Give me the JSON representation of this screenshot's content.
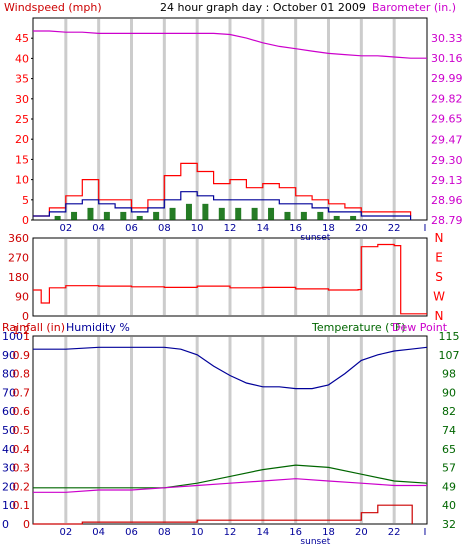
{
  "chart_data": {
    "title": "24 hour graph day : October 01 2009",
    "x_tick_labels": [
      "02",
      "04",
      "06",
      "08",
      "10",
      "12",
      "14",
      "16",
      "18",
      "20",
      "22",
      "I"
    ],
    "marker_label": "sunset",
    "colors": {
      "red": "#ff0000",
      "blue": "#000099",
      "green": "#006600",
      "magenta": "#cc00cc",
      "darkred": "#cc0000",
      "grid": "#cccccc"
    },
    "panels": [
      {
        "id": "wind-baro",
        "type": "line",
        "left_axis": {
          "label": "Windspeed (mph)",
          "ticks": [
            "0",
            "5",
            "10",
            "15",
            "20",
            "25",
            "30",
            "35",
            "40",
            "45"
          ],
          "range": [
            0,
            50
          ]
        },
        "right_axis": {
          "label": "Barometer (in.)",
          "ticks": [
            "28.79",
            "28.96",
            "29.13",
            "29.30",
            "29.47",
            "29.65",
            "29.82",
            "29.99",
            "30.16",
            "30.33"
          ],
          "range": [
            28.79,
            30.5
          ]
        },
        "series": [
          {
            "axis": "right",
            "color_key": "magenta",
            "points": [
              [
                0,
                30.39
              ],
              [
                1,
                30.39
              ],
              [
                2,
                30.38
              ],
              [
                3,
                30.38
              ],
              [
                4,
                30.37
              ],
              [
                5,
                30.37
              ],
              [
                6,
                30.37
              ],
              [
                7,
                30.37
              ],
              [
                8,
                30.37
              ],
              [
                9,
                30.37
              ],
              [
                10,
                30.37
              ],
              [
                11,
                30.37
              ],
              [
                12,
                30.36
              ],
              [
                13,
                30.33
              ],
              [
                14,
                30.29
              ],
              [
                15,
                30.26
              ],
              [
                16,
                30.24
              ],
              [
                17,
                30.22
              ],
              [
                18,
                30.2
              ],
              [
                19,
                30.19
              ],
              [
                20,
                30.18
              ],
              [
                21,
                30.18
              ],
              [
                22,
                30.17
              ],
              [
                23,
                30.16
              ],
              [
                24,
                30.16
              ]
            ]
          },
          {
            "axis": "left",
            "color_key": "red",
            "points": [
              [
                0,
                1
              ],
              [
                1,
                3
              ],
              [
                2,
                6
              ],
              [
                3,
                10
              ],
              [
                4,
                5
              ],
              [
                5,
                5
              ],
              [
                6,
                3
              ],
              [
                7,
                5
              ],
              [
                8,
                11
              ],
              [
                9,
                14
              ],
              [
                10,
                12
              ],
              [
                11,
                9
              ],
              [
                12,
                10
              ],
              [
                13,
                8
              ],
              [
                14,
                9
              ],
              [
                15,
                8
              ],
              [
                16,
                6
              ],
              [
                17,
                5
              ],
              [
                18,
                4
              ],
              [
                19,
                3
              ],
              [
                20,
                2
              ],
              [
                21,
                2
              ],
              [
                22,
                2
              ],
              [
                23,
                1
              ]
            ]
          },
          {
            "axis": "left",
            "color_key": "blue",
            "points": [
              [
                0,
                1
              ],
              [
                1,
                2
              ],
              [
                2,
                4
              ],
              [
                3,
                5
              ],
              [
                4,
                4
              ],
              [
                5,
                3
              ],
              [
                6,
                2
              ],
              [
                7,
                3
              ],
              [
                8,
                5
              ],
              [
                9,
                7
              ],
              [
                10,
                6
              ],
              [
                11,
                5
              ],
              [
                12,
                5
              ],
              [
                13,
                5
              ],
              [
                14,
                5
              ],
              [
                15,
                4
              ],
              [
                16,
                4
              ],
              [
                17,
                3
              ],
              [
                18,
                2
              ],
              [
                19,
                2
              ],
              [
                20,
                1
              ],
              [
                21,
                1
              ],
              [
                22,
                1
              ],
              [
                23,
                0
              ]
            ]
          },
          {
            "axis": "left",
            "color_key": "green",
            "points": [
              [
                0,
                0
              ],
              [
                1,
                1
              ],
              [
                2,
                2
              ],
              [
                3,
                3
              ],
              [
                4,
                2
              ],
              [
                5,
                2
              ],
              [
                6,
                1
              ],
              [
                7,
                2
              ],
              [
                8,
                3
              ],
              [
                9,
                4
              ],
              [
                10,
                4
              ],
              [
                11,
                3
              ],
              [
                12,
                3
              ],
              [
                13,
                3
              ],
              [
                14,
                3
              ],
              [
                15,
                2
              ],
              [
                16,
                2
              ],
              [
                17,
                2
              ],
              [
                18,
                1
              ],
              [
                19,
                1
              ],
              [
                20,
                0
              ],
              [
                21,
                0
              ],
              [
                22,
                0
              ],
              [
                23,
                0
              ]
            ]
          }
        ]
      },
      {
        "id": "direction",
        "type": "line",
        "left_axis": {
          "ticks": [
            "0",
            "90",
            "180",
            "270",
            "360"
          ],
          "range": [
            0,
            360
          ]
        },
        "right_axis": {
          "ticks": [
            "N",
            "W",
            "S",
            "E",
            "N"
          ]
        },
        "series": [
          {
            "axis": "left",
            "color_key": "red",
            "points": [
              [
                0,
                120
              ],
              [
                0.5,
                60
              ],
              [
                1,
                130
              ],
              [
                2,
                140
              ],
              [
                4,
                138
              ],
              [
                6,
                135
              ],
              [
                8,
                132
              ],
              [
                10,
                138
              ],
              [
                12,
                130
              ],
              [
                14,
                132
              ],
              [
                16,
                125
              ],
              [
                18,
                120
              ],
              [
                19.8,
                122
              ],
              [
                20,
                320
              ],
              [
                21,
                330
              ],
              [
                22,
                325
              ],
              [
                22.4,
                10
              ],
              [
                24,
                10
              ]
            ]
          }
        ]
      },
      {
        "id": "rain-hum-temp",
        "type": "line",
        "left_axis_rain": {
          "label": "Rainfall (in)",
          "ticks": [
            "0",
            "0.1",
            "0.2",
            "0.3",
            "0.4",
            "0.5",
            "0.6",
            "0.7",
            "0.8",
            "0.9",
            "1",
            "1.2"
          ]
        },
        "left_axis_humidity": {
          "label": "Humidity %",
          "ticks": [
            "0",
            "10",
            "20",
            "30",
            "40",
            "50",
            "60",
            "70",
            "80",
            "90",
            "100"
          ],
          "range": [
            0,
            100
          ]
        },
        "right_axis": {
          "label_temperature": "Temperature (°F)",
          "label_dewpoint": "Dew Point",
          "ticks": [
            "32",
            "40",
            "49",
            "57",
            "65",
            "74",
            "82",
            "90",
            "98",
            "107",
            "115"
          ],
          "range": [
            32,
            115
          ]
        },
        "series": [
          {
            "axis": "humidity",
            "color_key": "blue",
            "points": [
              [
                0,
                93
              ],
              [
                2,
                93
              ],
              [
                4,
                94
              ],
              [
                6,
                94
              ],
              [
                8,
                94
              ],
              [
                9,
                93
              ],
              [
                10,
                90
              ],
              [
                11,
                84
              ],
              [
                12,
                79
              ],
              [
                13,
                75
              ],
              [
                14,
                73
              ],
              [
                15,
                73
              ],
              [
                16,
                72
              ],
              [
                17,
                72
              ],
              [
                18,
                74
              ],
              [
                19,
                80
              ],
              [
                20,
                87
              ],
              [
                21,
                90
              ],
              [
                22,
                92
              ],
              [
                23,
                93
              ],
              [
                24,
                94
              ]
            ]
          },
          {
            "axis": "right",
            "color_key": "green",
            "points": [
              [
                0,
                48
              ],
              [
                2,
                48
              ],
              [
                4,
                48
              ],
              [
                6,
                48
              ],
              [
                8,
                48
              ],
              [
                10,
                50
              ],
              [
                12,
                53
              ],
              [
                14,
                56
              ],
              [
                16,
                58
              ],
              [
                18,
                57
              ],
              [
                20,
                54
              ],
              [
                22,
                51
              ],
              [
                24,
                50
              ]
            ]
          },
          {
            "axis": "right",
            "color_key": "magenta",
            "points": [
              [
                0,
                46
              ],
              [
                2,
                46
              ],
              [
                4,
                47
              ],
              [
                6,
                47
              ],
              [
                8,
                48
              ],
              [
                10,
                49
              ],
              [
                12,
                50
              ],
              [
                14,
                51
              ],
              [
                16,
                52
              ],
              [
                18,
                51
              ],
              [
                20,
                50
              ],
              [
                22,
                49
              ],
              [
                24,
                49
              ]
            ]
          },
          {
            "axis": "humidity",
            "color_key": "darkred",
            "points": [
              [
                0,
                0
              ],
              [
                3,
                1
              ],
              [
                6,
                1
              ],
              [
                10,
                2
              ],
              [
                12,
                2
              ],
              [
                15,
                2
              ],
              [
                19,
                2
              ],
              [
                20,
                6
              ],
              [
                21,
                10
              ],
              [
                23,
                10
              ],
              [
                23.1,
                0
              ]
            ]
          }
        ]
      }
    ]
  }
}
